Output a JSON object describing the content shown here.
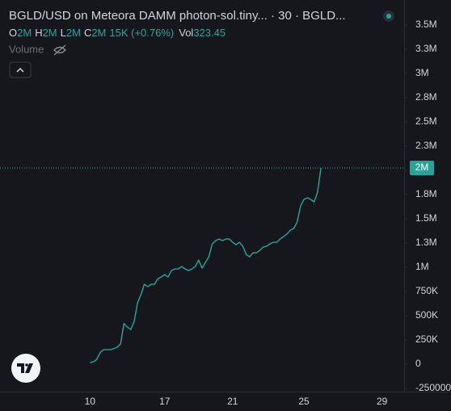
{
  "chart_data": {
    "type": "line",
    "title": "BGLD/USD on Meteora DAMM photon-sol.tiny... · 30 · BGLD...",
    "ohlc": [
      {
        "label": "O",
        "value": "2M"
      },
      {
        "label": "H",
        "value": "2M"
      },
      {
        "label": "L",
        "value": "2M"
      },
      {
        "label": "C",
        "value": "2M"
      }
    ],
    "change": "15K (+0.76%)",
    "volume_label": "Vol",
    "volume": "323.45",
    "volume_pane": "Volume",
    "color": "#26a69a",
    "grid": false,
    "categories": [
      null,
      null,
      null,
      null,
      null,
      null,
      null,
      null,
      null,
      null,
      null,
      null,
      null,
      null,
      null,
      null,
      null,
      null,
      null,
      null,
      null,
      null,
      null,
      null,
      null,
      null,
      "10",
      null,
      null,
      null,
      null,
      null,
      null,
      null,
      null,
      null,
      null,
      null,
      null,
      null,
      null,
      null,
      null,
      null,
      null,
      null,
      null,
      null,
      "17",
      null,
      null,
      null,
      null,
      null,
      null,
      null,
      null,
      null,
      null,
      null,
      null,
      null,
      null,
      null,
      null,
      null,
      null,
      null,
      "21",
      null,
      null,
      null,
      null,
      null,
      null,
      null,
      null,
      null,
      null,
      null,
      null,
      null,
      null,
      null,
      null,
      null,
      null,
      null,
      null,
      "25",
      null,
      null,
      null,
      null,
      null,
      null,
      null,
      null,
      null,
      null,
      null,
      null,
      null,
      null,
      null,
      null,
      null,
      null,
      null,
      null,
      null,
      null,
      "29",
      null,
      null,
      null,
      null,
      null,
      null
    ],
    "values": [
      null,
      null,
      null,
      null,
      null,
      null,
      null,
      null,
      null,
      null,
      null,
      null,
      null,
      null,
      null,
      null,
      null,
      null,
      null,
      null,
      null,
      null,
      null,
      null,
      null,
      null,
      17000,
      25000,
      50000,
      120000,
      150000,
      150000,
      150000,
      160000,
      175000,
      210000,
      420000,
      383000,
      358000,
      442000,
      633000,
      717000,
      825000,
      800000,
      825000,
      825000,
      883000,
      900000,
      925000,
      900000,
      967000,
      983000,
      983000,
      1008000,
      983000,
      967000,
      983000,
      1008000,
      1075000,
      992000,
      1050000,
      1108000,
      1242000,
      1275000,
      1292000,
      1275000,
      1292000,
      1292000,
      1258000,
      1233000,
      1258000,
      1217000,
      1133000,
      1108000,
      1150000,
      1150000,
      1175000,
      1208000,
      1217000,
      1242000,
      1258000,
      1258000,
      1292000,
      1317000,
      1342000,
      1383000,
      1400000,
      1467000,
      1633000,
      1700000,
      1717000,
      1700000,
      1675000,
      1775000,
      2025000,
      null,
      null,
      null,
      null,
      null,
      null,
      null,
      null,
      null,
      null,
      null,
      null,
      null,
      null,
      null,
      null,
      null,
      null,
      null,
      null,
      null,
      null,
      null,
      null
    ],
    "last_price": {
      "value": 2025000,
      "label": "2M"
    },
    "ylim": [
      -283000,
      3758000
    ],
    "yticks": [
      {
        "value": 3500000,
        "label": "3.5M"
      },
      {
        "value": 3250000,
        "label": "3.3M"
      },
      {
        "value": 3000000,
        "label": "3M"
      },
      {
        "value": 2750000,
        "label": "2.8M"
      },
      {
        "value": 2500000,
        "label": "2.5M"
      },
      {
        "value": 2250000,
        "label": "2.3M"
      },
      {
        "value": 2000000,
        "label": "2M"
      },
      {
        "value": 1750000,
        "label": "1.8M"
      },
      {
        "value": 1500000,
        "label": "1.5M"
      },
      {
        "value": 1250000,
        "label": "1.3M"
      },
      {
        "value": 1000000,
        "label": "1M"
      },
      {
        "value": 750000,
        "label": "750K"
      },
      {
        "value": 500000,
        "label": "500K"
      },
      {
        "value": 250000,
        "label": "250K"
      },
      0,
      {
        "value": -250000,
        "label": "-250000"
      }
    ]
  }
}
